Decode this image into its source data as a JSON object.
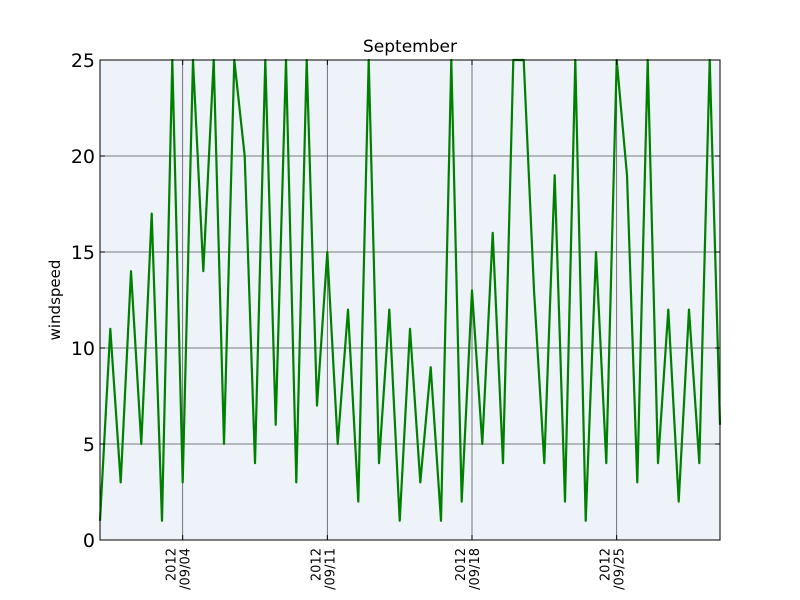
{
  "chart_data": {
    "type": "line",
    "title": "September",
    "ylabel": "windspeed",
    "xlabel": "",
    "x_range": [
      "2012-08-31",
      "2012-09-30"
    ],
    "ylim": [
      0,
      25
    ],
    "yticks": [
      0,
      5,
      10,
      15,
      20,
      25
    ],
    "xticks": [
      {
        "date": "2012-09-04",
        "line1": "2012",
        "line2": "/09/04"
      },
      {
        "date": "2012-09-11",
        "line1": "2012",
        "line2": "/09/11"
      },
      {
        "date": "2012-09-18",
        "line1": "2012",
        "line2": "/09/18"
      },
      {
        "date": "2012-09-25",
        "line1": "2012",
        "line2": "/09/25"
      }
    ],
    "grid": true,
    "colors": {
      "line": "#008000",
      "background": "#eef3f9",
      "grid": "#555555"
    },
    "series": [
      {
        "x": [
          "2012-08-31T00:00",
          "2012-08-31T12:00",
          "2012-09-01T00:00",
          "2012-09-01T12:00",
          "2012-09-02T00:00",
          "2012-09-02T12:00",
          "2012-09-03T00:00",
          "2012-09-03T12:00",
          "2012-09-04T00:00",
          "2012-09-04T12:00",
          "2012-09-05T00:00",
          "2012-09-05T12:00",
          "2012-09-06T00:00",
          "2012-09-06T12:00",
          "2012-09-07T00:00",
          "2012-09-07T12:00",
          "2012-09-08T00:00",
          "2012-09-08T12:00",
          "2012-09-09T00:00",
          "2012-09-09T12:00",
          "2012-09-10T00:00",
          "2012-09-10T12:00",
          "2012-09-11T00:00",
          "2012-09-11T12:00",
          "2012-09-12T00:00",
          "2012-09-12T12:00",
          "2012-09-13T00:00",
          "2012-09-13T12:00",
          "2012-09-14T00:00",
          "2012-09-14T12:00",
          "2012-09-15T00:00",
          "2012-09-15T12:00",
          "2012-09-16T00:00",
          "2012-09-16T12:00",
          "2012-09-17T00:00",
          "2012-09-17T12:00",
          "2012-09-18T00:00",
          "2012-09-18T12:00",
          "2012-09-19T00:00",
          "2012-09-19T12:00",
          "2012-09-20T00:00",
          "2012-09-20T12:00",
          "2012-09-21T00:00",
          "2012-09-21T12:00",
          "2012-09-22T00:00",
          "2012-09-22T12:00",
          "2012-09-23T00:00",
          "2012-09-23T12:00",
          "2012-09-24T00:00",
          "2012-09-24T12:00",
          "2012-09-25T00:00",
          "2012-09-25T12:00",
          "2012-09-26T00:00",
          "2012-09-26T12:00",
          "2012-09-27T00:00",
          "2012-09-27T12:00",
          "2012-09-28T00:00",
          "2012-09-28T12:00",
          "2012-09-29T00:00",
          "2012-09-29T12:00",
          "2012-09-30T00:00"
        ],
        "y": [
          1,
          11,
          3,
          14,
          5,
          17,
          1,
          25,
          3,
          25,
          14,
          25,
          5,
          25,
          20,
          4,
          25,
          6,
          25,
          3,
          25,
          7,
          15,
          5,
          12,
          2,
          25,
          4,
          12,
          1,
          11,
          3,
          9,
          1,
          25,
          2,
          13,
          5,
          16,
          4,
          25,
          25,
          13,
          4,
          19,
          2,
          25,
          1,
          15,
          4,
          25,
          19,
          3,
          25,
          4,
          12,
          2,
          12,
          4,
          25,
          6
        ]
      }
    ]
  }
}
